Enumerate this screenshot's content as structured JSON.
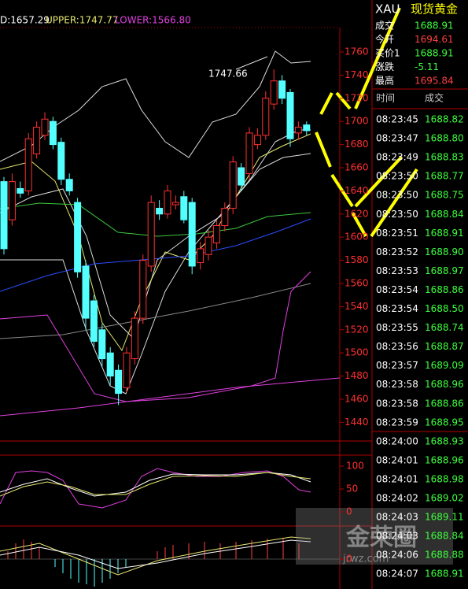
{
  "indicator_header": {
    "mid": "D:1657.29",
    "upper": "UPPER:1747.77",
    "lower": "LOWER:1566.80"
  },
  "price_axis": [
    1760,
    1740,
    1720,
    1700,
    1680,
    1660,
    1640,
    1620,
    1600,
    1580,
    1560,
    1540,
    1520,
    1500,
    1480,
    1460,
    1440
  ],
  "annotation": "1747.66",
  "candles": {
    "open": [
      1648,
      1615,
      1642,
      1640,
      1672,
      1688,
      1700,
      1682,
      1650,
      1630,
      1575,
      1545,
      1520,
      1500,
      1485,
      1470,
      1495,
      1530,
      1575,
      1625,
      1620,
      1628,
      1635,
      1630,
      1578,
      1585,
      1595,
      1610,
      1625,
      1660,
      1655,
      1680,
      1688,
      1715,
      1735,
      1725,
      1690,
      1697
    ],
    "high": [
      1652,
      1655,
      1648,
      1690,
      1700,
      1708,
      1704,
      1686,
      1655,
      1634,
      1580,
      1550,
      1525,
      1505,
      1490,
      1505,
      1536,
      1585,
      1636,
      1632,
      1645,
      1636,
      1640,
      1634,
      1596,
      1606,
      1615,
      1630,
      1670,
      1664,
      1695,
      1694,
      1726,
      1745,
      1740,
      1728,
      1700,
      1700
    ],
    "low": [
      1585,
      1610,
      1634,
      1636,
      1668,
      1684,
      1676,
      1645,
      1636,
      1565,
      1520,
      1505,
      1488,
      1472,
      1455,
      1466,
      1490,
      1525,
      1570,
      1615,
      1616,
      1624,
      1612,
      1568,
      1572,
      1580,
      1590,
      1605,
      1620,
      1640,
      1650,
      1676,
      1684,
      1710,
      1715,
      1678,
      1684,
      1688
    ],
    "close": [
      1590,
      1648,
      1638,
      1685,
      1695,
      1702,
      1680,
      1650,
      1640,
      1570,
      1530,
      1510,
      1495,
      1480,
      1465,
      1500,
      1530,
      1580,
      1630,
      1620,
      1640,
      1630,
      1615,
      1575,
      1590,
      1600,
      1610,
      1625,
      1665,
      1645,
      1690,
      1688,
      1720,
      1735,
      1720,
      1685,
      1695,
      1692
    ]
  },
  "oscillator_axis": [
    100,
    50,
    0
  ],
  "macd_axis": [
    0
  ],
  "quote": {
    "symbol": "XAU",
    "name": "现货黄金",
    "rows": [
      [
        "成交",
        "1688.91"
      ],
      [
        "今开",
        "1694.61"
      ],
      [
        "买价1",
        "1688.91"
      ],
      [
        "涨跌",
        "-5.11"
      ],
      [
        "最高",
        "1695.84"
      ]
    ]
  },
  "trades": {
    "headers": [
      "时间",
      "成交"
    ],
    "rows": [
      [
        "08:23:45",
        "1688.82"
      ],
      [
        "08:23:47",
        "1688.80"
      ],
      [
        "08:23:49",
        "1688.83"
      ],
      [
        "08:23:50",
        "1688.77"
      ],
      [
        "08:23:50",
        "1688.75"
      ],
      [
        "08:23:50",
        "1688.84"
      ],
      [
        "08:23:51",
        "1688.91"
      ],
      [
        "08:23:52",
        "1688.90"
      ],
      [
        "08:23:53",
        "1688.97"
      ],
      [
        "08:23:54",
        "1688.86"
      ],
      [
        "08:23:54",
        "1688.50"
      ],
      [
        "08:23:55",
        "1688.74"
      ],
      [
        "08:23:56",
        "1688.87"
      ],
      [
        "08:23:57",
        "1689.09"
      ],
      [
        "08:23:58",
        "1688.96"
      ],
      [
        "08:23:58",
        "1688.86"
      ],
      [
        "08:23:59",
        "1688.95"
      ],
      [
        "08:24:00",
        "1688.93"
      ],
      [
        "08:24:01",
        "1688.96"
      ],
      [
        "08:24:01",
        "1688.98"
      ],
      [
        "08:24:02",
        "1689.02"
      ],
      [
        "08:24:03",
        "1689.11"
      ],
      [
        "08:24:03",
        "1688.84"
      ],
      [
        "08:24:06",
        "1688.88"
      ],
      [
        "08:24:07",
        "1688.91"
      ]
    ]
  },
  "watermark": {
    "brand": "金荣圈",
    "site": "jrwz.com"
  }
}
